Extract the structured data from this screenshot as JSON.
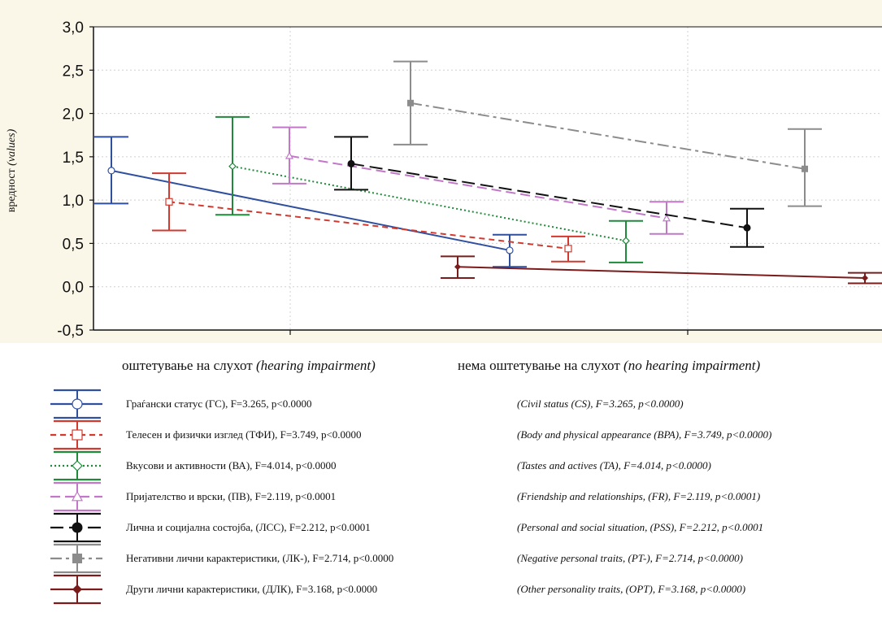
{
  "chart_data": {
    "type": "line",
    "title": "",
    "xlabel": "",
    "ylabel_main": "вредност",
    "ylabel_italic": "(values)",
    "ylim": [
      -0.5,
      3.0
    ],
    "y_ticks": [
      "-0,5",
      "0,0",
      "0,5",
      "1,0",
      "1,5",
      "2,0",
      "2,5",
      "3,0"
    ],
    "y_tick_values": [
      -0.5,
      0,
      0.5,
      1.0,
      1.5,
      2.0,
      2.5,
      3.0
    ],
    "grid": true,
    "error_bars": true,
    "categories": [
      {
        "main": "оштетување на слухот",
        "italic": "(hearing impairment)"
      },
      {
        "main": "нема оштетување на слухот",
        "italic": "(no hearing impairment)"
      }
    ],
    "series": [
      {
        "name": "Граѓански статус (ГС), F=3.265, p<0.0000",
        "name_en": "(Civil status (CS), F=3.265, p<0.0000)",
        "color": "#2f4f9f",
        "dash": "",
        "marker": "circle-open",
        "values": [
          1.34,
          0.42
        ],
        "ci": [
          [
            0.96,
            1.73
          ],
          [
            0.23,
            0.6
          ]
        ]
      },
      {
        "name": "Телесен и физички изглед (ТФИ), F=3.749, p<0.0000",
        "name_en": "(Body and physical appearance (BPA), F=3.749, p<0.0000)",
        "color": "#d33a2f",
        "dash": "7,5",
        "marker": "square-open",
        "values": [
          0.98,
          0.44
        ],
        "ci": [
          [
            0.65,
            1.31
          ],
          [
            0.29,
            0.58
          ]
        ]
      },
      {
        "name": "Вкусови и активности (ВА), F=4.014, p<0.0000",
        "name_en": "(Tastes and actives (TA), F=4.014, p<0.0000)",
        "color": "#1f8a3a",
        "dash": "2,3",
        "marker": "diamond-open",
        "values": [
          1.39,
          0.53
        ],
        "ci": [
          [
            0.83,
            1.96
          ],
          [
            0.28,
            0.76
          ]
        ]
      },
      {
        "name": "Пријателство и врски, (ПВ), F=2.119, p<0.0001",
        "name_en": "(Friendship and relationships, (FR), F=2.119, p<0.0001)",
        "color": "#c277c9",
        "dash": "12,6",
        "marker": "triangle-open",
        "values": [
          1.51,
          0.79
        ],
        "ci": [
          [
            1.19,
            1.84
          ],
          [
            0.61,
            0.98
          ]
        ]
      },
      {
        "name": "Лична и социјална состојба, (ЛСС), F=2.212, p<0.0001",
        "name_en": "(Personal and social situation, (PSS), F=2.212, p<0.0001",
        "color": "#111111",
        "dash": "16,7",
        "marker": "circle",
        "values": [
          1.42,
          0.68
        ],
        "ci": [
          [
            1.12,
            1.73
          ],
          [
            0.46,
            0.9
          ]
        ]
      },
      {
        "name": "Негативни лични карактеристики, (ЛК-), F=2.714, p<0.0000",
        "name_en": "(Negative personal traits, (PT-), F=2.714, p<0.0000)",
        "color": "#8c8c8c",
        "dash": "14,5,4,5",
        "marker": "square",
        "values": [
          2.12,
          1.36
        ],
        "ci": [
          [
            1.64,
            2.6
          ],
          [
            0.93,
            1.82
          ]
        ]
      },
      {
        "name": "Други лични карактеристики, (ДЛК), F=3.168, p<0.0000",
        "name_en": "(Other personality traits, (OPT), F=3.168, p<0.0000)",
        "color": "#7a1c1c",
        "dash": "",
        "marker": "diamond",
        "values": [
          0.23,
          0.1
        ],
        "ci": [
          [
            0.1,
            0.35
          ],
          [
            0.04,
            0.16
          ]
        ]
      }
    ]
  }
}
